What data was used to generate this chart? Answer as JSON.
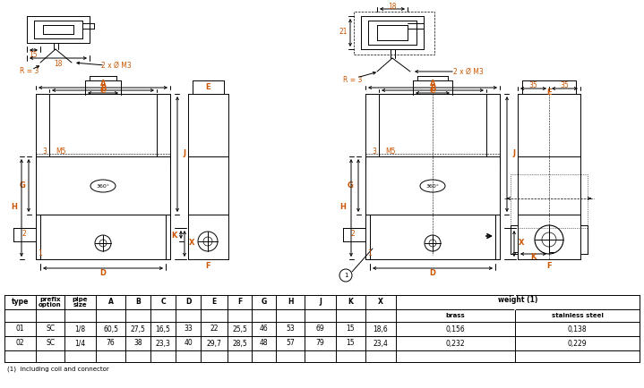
{
  "bg_color": "#ffffff",
  "orange": "#cc5500",
  "black": "#000000",
  "table": {
    "rows": [
      [
        "01",
        "SC",
        "1/8",
        "60,5",
        "27,5",
        "16,5",
        "33",
        "22",
        "25,5",
        "46",
        "53",
        "69",
        "15",
        "18,6",
        "0,156",
        "0,138"
      ],
      [
        "02",
        "SC",
        "1/4",
        "76",
        "38",
        "23,3",
        "40",
        "29,7",
        "28,5",
        "48",
        "57",
        "79",
        "15",
        "23,4",
        "0,232",
        "0,229"
      ]
    ],
    "footnote": "(1)  including coil and connector"
  }
}
